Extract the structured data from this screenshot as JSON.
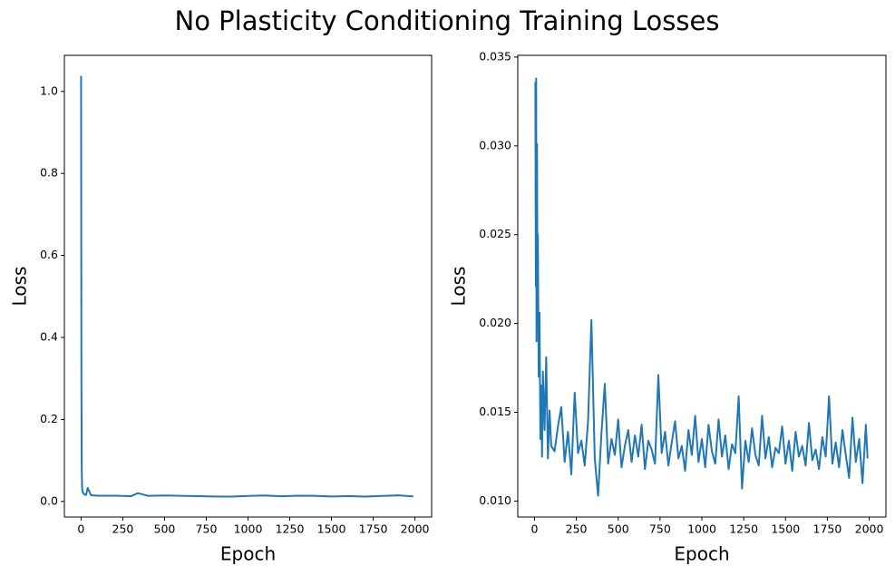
{
  "title": "No Plasticity Conditioning Training Losses",
  "chart_data": [
    {
      "type": "line",
      "xlabel": "Epoch",
      "ylabel": "Loss",
      "color": "#1f77b4",
      "xlim": [
        -100,
        2100
      ],
      "xticks": [
        0,
        250,
        500,
        750,
        1000,
        1250,
        1500,
        1750,
        2000
      ],
      "ylim": [
        -0.038,
        1.088
      ],
      "yticks": [
        {
          "value": 0.0,
          "label": "0.0"
        },
        0.2,
        0.4,
        0.6,
        0.8,
        {
          "value": 1.0,
          "label": "1.0"
        }
      ],
      "x": [
        0,
        2,
        4,
        6,
        10,
        20,
        30,
        40,
        60,
        100,
        200,
        300,
        340,
        400,
        500,
        600,
        700,
        800,
        900,
        1000,
        1100,
        1200,
        1300,
        1400,
        1500,
        1600,
        1700,
        1800,
        1900,
        1990
      ],
      "values": [
        1.038,
        0.3,
        0.08,
        0.034,
        0.022,
        0.017,
        0.016,
        0.033,
        0.015,
        0.014,
        0.0139,
        0.013,
        0.0202,
        0.0138,
        0.0146,
        0.0137,
        0.0129,
        0.012,
        0.0117,
        0.0135,
        0.0146,
        0.0127,
        0.0141,
        0.0136,
        0.0121,
        0.0131,
        0.0118,
        0.0133,
        0.0147,
        0.0124
      ]
    },
    {
      "type": "line",
      "xlabel": "Epoch",
      "ylabel": "Loss",
      "color": "#1f77b4",
      "xlim": [
        -100,
        2100
      ],
      "xticks": [
        0,
        250,
        500,
        750,
        1000,
        1250,
        1500,
        1750,
        2000
      ],
      "ylim": [
        0.0091,
        0.0351
      ],
      "yticks": [
        {
          "value": 0.01,
          "label": "0.010"
        },
        0.015,
        {
          "value": 0.02,
          "label": "0.020"
        },
        0.025,
        {
          "value": 0.03,
          "label": "0.030"
        },
        0.035
      ],
      "x": [
        5,
        8,
        10,
        12,
        15,
        18,
        20,
        25,
        30,
        35,
        40,
        45,
        50,
        60,
        70,
        80,
        90,
        100,
        120,
        140,
        160,
        180,
        200,
        220,
        240,
        260,
        280,
        300,
        320,
        340,
        360,
        380,
        400,
        420,
        440,
        460,
        480,
        500,
        520,
        540,
        560,
        580,
        600,
        620,
        640,
        660,
        680,
        700,
        720,
        740,
        760,
        780,
        800,
        820,
        840,
        860,
        880,
        900,
        920,
        940,
        960,
        980,
        1000,
        1020,
        1040,
        1060,
        1080,
        1100,
        1120,
        1140,
        1160,
        1180,
        1200,
        1220,
        1240,
        1260,
        1280,
        1300,
        1320,
        1340,
        1360,
        1380,
        1400,
        1420,
        1440,
        1460,
        1480,
        1500,
        1520,
        1540,
        1560,
        1580,
        1600,
        1620,
        1640,
        1660,
        1680,
        1700,
        1720,
        1740,
        1760,
        1780,
        1800,
        1820,
        1840,
        1860,
        1880,
        1900,
        1920,
        1940,
        1960,
        1980,
        1990
      ],
      "values": [
        0.0336,
        0.0221,
        0.0338,
        0.019,
        0.0301,
        0.0215,
        0.025,
        0.017,
        0.0206,
        0.0135,
        0.0165,
        0.0125,
        0.0173,
        0.014,
        0.0181,
        0.0124,
        0.0151,
        0.0131,
        0.0128,
        0.0142,
        0.0153,
        0.0122,
        0.0139,
        0.0115,
        0.0161,
        0.0127,
        0.0134,
        0.012,
        0.0145,
        0.0202,
        0.0124,
        0.0103,
        0.0138,
        0.0166,
        0.0121,
        0.0135,
        0.0126,
        0.0146,
        0.0119,
        0.0131,
        0.014,
        0.0122,
        0.0137,
        0.0125,
        0.0143,
        0.0118,
        0.0134,
        0.0129,
        0.0121,
        0.0171,
        0.0127,
        0.0139,
        0.012,
        0.0133,
        0.0145,
        0.0124,
        0.0131,
        0.0117,
        0.014,
        0.0126,
        0.0148,
        0.0122,
        0.0135,
        0.0119,
        0.0143,
        0.0128,
        0.0121,
        0.0146,
        0.0125,
        0.0137,
        0.0118,
        0.0132,
        0.0127,
        0.0159,
        0.0107,
        0.0134,
        0.0122,
        0.0141,
        0.0126,
        0.012,
        0.0148,
        0.0124,
        0.0136,
        0.0119,
        0.013,
        0.0127,
        0.0142,
        0.0121,
        0.0134,
        0.0117,
        0.0139,
        0.0125,
        0.0131,
        0.012,
        0.0144,
        0.0123,
        0.0129,
        0.0118,
        0.0136,
        0.0125,
        0.0159,
        0.0121,
        0.0133,
        0.0119,
        0.014,
        0.0126,
        0.0113,
        0.0147,
        0.0122,
        0.0135,
        0.011,
        0.0143,
        0.0124
      ]
    }
  ]
}
